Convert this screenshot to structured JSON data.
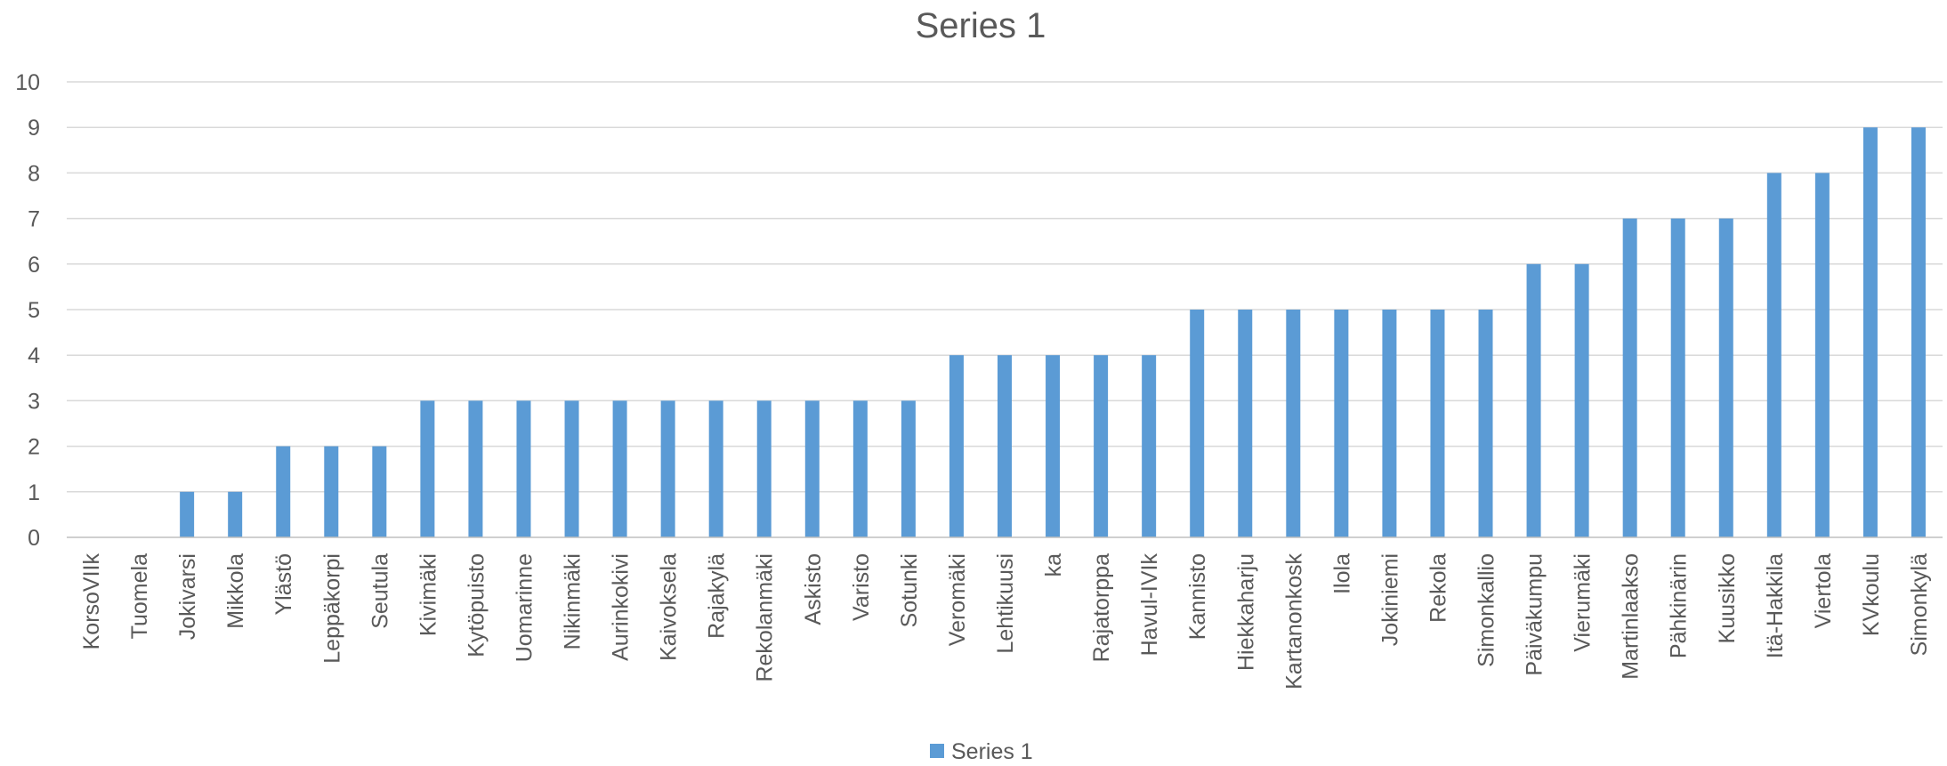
{
  "chart_data": {
    "type": "bar",
    "title": "Series 1",
    "xlabel": "",
    "ylabel": "",
    "ylim": [
      0,
      10
    ],
    "yticks": [
      0,
      1,
      2,
      3,
      4,
      5,
      6,
      7,
      8,
      9,
      10
    ],
    "grid": true,
    "legend": "bottom",
    "categories": [
      "KorsoVIIk",
      "Tuomela",
      "Jokivarsi",
      "Mikkola",
      "Ylästö",
      "Leppäkorpi",
      "Seutula",
      "Kivimäki",
      "Kytöpuisto",
      "Uomarinne",
      "Nikinmäki",
      "Aurinkokivi",
      "Kaivoksela",
      "Rajakylä",
      "Rekolanmäki",
      "Askisto",
      "Varisto",
      "Sotunki",
      "Veromäki",
      "Lehtikuusi",
      "ka",
      "Rajatorppa",
      "Havul-IVIk",
      "Kannisto",
      "Hiekkaharju",
      "Kartanonkosk",
      "Ilola",
      "Jokiniemi",
      "Rekola",
      "Simonkallio",
      "Päiväkumpu",
      "Vierumäki",
      "Martinlaakso",
      "Pähkinärin",
      "Kuusikko",
      "Itä-Hakkila",
      "Viertola",
      "KVkoulu",
      "Simonkylä"
    ],
    "series": [
      {
        "name": "Series 1",
        "color": "#5b9bd5",
        "values": [
          0,
          0,
          1,
          1,
          2,
          2,
          2,
          3,
          3,
          3,
          3,
          3,
          3,
          3,
          3,
          3,
          3,
          3,
          4,
          4,
          4,
          4,
          4,
          5,
          5,
          5,
          5,
          5,
          5,
          5,
          6,
          6,
          7,
          7,
          7,
          8,
          8,
          9,
          9
        ]
      }
    ]
  }
}
